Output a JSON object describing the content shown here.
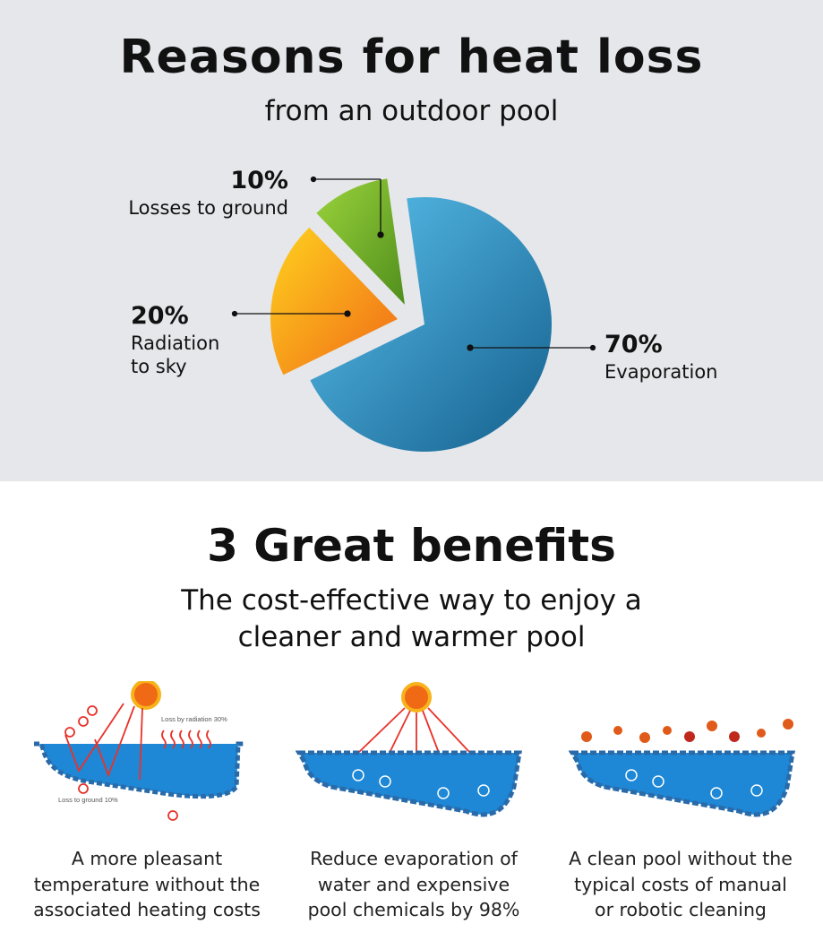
{
  "header": {
    "title": "Reasons for heat loss",
    "subtitle": "from an outdoor pool"
  },
  "chart_data": {
    "type": "pie",
    "title": "Reasons for heat loss",
    "subtitle": "from an outdoor pool",
    "slices": [
      {
        "label": "Evaporation",
        "value": 70,
        "display": "70%",
        "color": "#1f83b8"
      },
      {
        "label": "Radiation to sky",
        "value": 20,
        "display": "20%",
        "color": "#f7a21b"
      },
      {
        "label": "Losses to ground",
        "value": 10,
        "display": "10%",
        "color": "#7cb82a"
      }
    ]
  },
  "labels": {
    "ground": {
      "pct": "10%",
      "text": "Losses to ground"
    },
    "radiation": {
      "pct": "20%",
      "text1": "Radiation",
      "text2": "to sky"
    },
    "evaporation": {
      "pct": "70%",
      "text": "Evaporation"
    }
  },
  "benefits": {
    "title": "3 Great benefits",
    "subtitle1": "The cost-effective way to enjoy a",
    "subtitle2": "cleaner and warmer pool",
    "illustration1": {
      "radiation": "Loss by radiation 30%",
      "ground": "Loss to ground 10%"
    },
    "items": [
      {
        "line1": "A more pleasant",
        "line2": "temperature without the",
        "line3": "associated heating costs"
      },
      {
        "line1": "Reduce evaporation of",
        "line2": "water and expensive",
        "line3": "pool chemicals by 98%"
      },
      {
        "line1": "A clean pool without the",
        "line2": "typical costs of manual",
        "line3": "or robotic cleaning"
      }
    ]
  }
}
